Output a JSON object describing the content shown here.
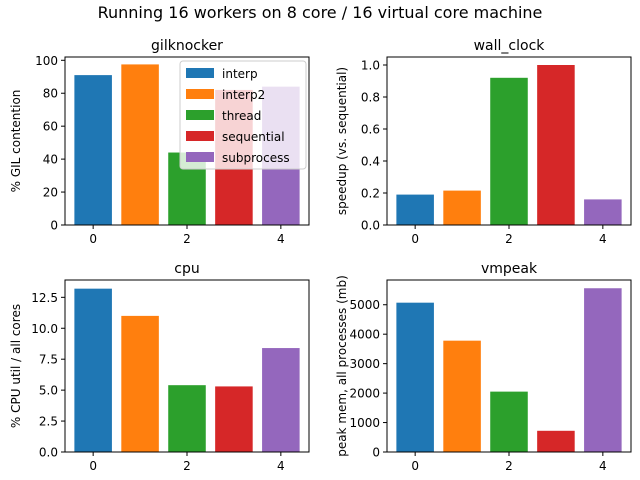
{
  "figure": {
    "suptitle": "Running 16 workers on 8 core / 16 virtual core machine"
  },
  "colors": {
    "interp": "#1f77b4",
    "interp2": "#ff7f0e",
    "thread": "#2ca02c",
    "sequential": "#d62728",
    "subprocess": "#9467bd"
  },
  "legend": {
    "placement": "top-right of first subplot",
    "entries": [
      "interp",
      "interp2",
      "thread",
      "sequential",
      "subprocess"
    ]
  },
  "chart_data": [
    {
      "type": "bar",
      "title": "gilknocker",
      "xlabel": "",
      "ylabel": "% GIL contention",
      "categories": [
        "interp",
        "interp2",
        "thread",
        "sequential",
        "subprocess"
      ],
      "x": [
        0,
        1,
        2,
        3,
        4
      ],
      "values": [
        91,
        97.5,
        44,
        82,
        84
      ],
      "xlim": [
        -0.6,
        4.6
      ],
      "ylim": [
        0,
        102
      ],
      "xticks": [
        0,
        2,
        4
      ],
      "xtick_labels": [
        "0",
        "2",
        "4"
      ],
      "yticks": [
        0,
        20,
        40,
        60,
        80,
        100
      ],
      "ytick_labels": [
        "0",
        "20",
        "40",
        "60",
        "80",
        "100"
      ],
      "legend": true,
      "grid": false
    },
    {
      "type": "bar",
      "title": "wall_clock",
      "xlabel": "",
      "ylabel": "speedup (vs. sequential)",
      "categories": [
        "interp",
        "interp2",
        "thread",
        "sequential",
        "subprocess"
      ],
      "x": [
        0,
        1,
        2,
        3,
        4
      ],
      "values": [
        0.19,
        0.215,
        0.92,
        1.0,
        0.16
      ],
      "xlim": [
        -0.6,
        4.6
      ],
      "ylim": [
        0,
        1.05
      ],
      "xticks": [
        0,
        2,
        4
      ],
      "xtick_labels": [
        "0",
        "2",
        "4"
      ],
      "yticks": [
        0,
        0.2,
        0.4,
        0.6,
        0.8,
        1.0
      ],
      "ytick_labels": [
        "0.0",
        "0.2",
        "0.4",
        "0.6",
        "0.8",
        "1.0"
      ],
      "legend": false,
      "grid": false
    },
    {
      "type": "bar",
      "title": "cpu",
      "xlabel": "",
      "ylabel": "% CPU util / all cores",
      "categories": [
        "interp",
        "interp2",
        "thread",
        "sequential",
        "subprocess"
      ],
      "x": [
        0,
        1,
        2,
        3,
        4
      ],
      "values": [
        13.2,
        11.0,
        5.4,
        5.3,
        8.4
      ],
      "xlim": [
        -0.6,
        4.6
      ],
      "ylim": [
        0,
        13.9
      ],
      "xticks": [
        0,
        2,
        4
      ],
      "xtick_labels": [
        "0",
        "2",
        "4"
      ],
      "yticks": [
        0,
        2.5,
        5.0,
        7.5,
        10.0,
        12.5
      ],
      "ytick_labels": [
        "0.0",
        "2.5",
        "5.0",
        "7.5",
        "10.0",
        "12.5"
      ],
      "legend": false,
      "grid": false
    },
    {
      "type": "bar",
      "title": "vmpeak",
      "xlabel": "",
      "ylabel": "peak mem, all processes (mb)",
      "categories": [
        "interp",
        "interp2",
        "thread",
        "sequential",
        "subprocess"
      ],
      "x": [
        0,
        1,
        2,
        3,
        4
      ],
      "values": [
        5070,
        3780,
        2050,
        720,
        5560
      ],
      "xlim": [
        -0.6,
        4.6
      ],
      "ylim": [
        0,
        5840
      ],
      "xticks": [
        0,
        2,
        4
      ],
      "xtick_labels": [
        "0",
        "2",
        "4"
      ],
      "yticks": [
        0,
        1000,
        2000,
        3000,
        4000,
        5000
      ],
      "ytick_labels": [
        "0",
        "1000",
        "2000",
        "3000",
        "4000",
        "5000"
      ],
      "legend": false,
      "grid": false
    }
  ]
}
